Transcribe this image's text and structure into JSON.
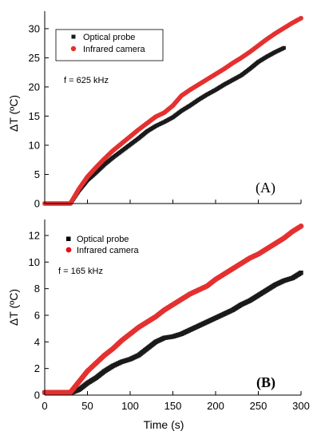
{
  "colors": {
    "optical": "#1a1a1a",
    "infrared": "#e53030",
    "axis": "#000000"
  },
  "xlabel": "Time (s)",
  "chart_data": [
    {
      "type": "scatter",
      "panel": "A",
      "panel_label": "(A)",
      "frequency_note": "f = 625 kHz",
      "ylabel": "ΔT (ºC)",
      "xlim": [
        0,
        300
      ],
      "ylim": [
        0,
        33
      ],
      "xticks": [
        0,
        50,
        100,
        150,
        200,
        250,
        300
      ],
      "yticks": [
        0,
        5,
        10,
        15,
        20,
        25,
        30
      ],
      "legend_position": "top-left",
      "series": [
        {
          "name": "Optical probe",
          "marker": "square",
          "points": [
            [
              0,
              0
            ],
            [
              20,
              0
            ],
            [
              30,
              0
            ],
            [
              40,
              2.2
            ],
            [
              50,
              4.0
            ],
            [
              60,
              5.3
            ],
            [
              70,
              6.7
            ],
            [
              80,
              7.9
            ],
            [
              90,
              9.0
            ],
            [
              100,
              10.1
            ],
            [
              110,
              11.2
            ],
            [
              120,
              12.4
            ],
            [
              130,
              13.3
            ],
            [
              140,
              14.0
            ],
            [
              150,
              14.8
            ],
            [
              160,
              15.9
            ],
            [
              170,
              16.8
            ],
            [
              180,
              17.8
            ],
            [
              190,
              18.7
            ],
            [
              200,
              19.5
            ],
            [
              210,
              20.4
            ],
            [
              220,
              21.2
            ],
            [
              230,
              22.0
            ],
            [
              240,
              23.1
            ],
            [
              250,
              24.3
            ],
            [
              260,
              25.2
            ],
            [
              270,
              26.0
            ],
            [
              280,
              26.7
            ]
          ]
        },
        {
          "name": "Infrared camera",
          "marker": "circle",
          "points": [
            [
              0,
              0
            ],
            [
              20,
              0
            ],
            [
              30,
              0
            ],
            [
              40,
              2.5
            ],
            [
              50,
              4.6
            ],
            [
              60,
              6.2
            ],
            [
              70,
              7.7
            ],
            [
              80,
              9.1
            ],
            [
              90,
              10.3
            ],
            [
              100,
              11.5
            ],
            [
              110,
              12.7
            ],
            [
              120,
              13.8
            ],
            [
              130,
              14.9
            ],
            [
              140,
              15.6
            ],
            [
              150,
              16.8
            ],
            [
              160,
              18.5
            ],
            [
              170,
              19.5
            ],
            [
              180,
              20.4
            ],
            [
              190,
              21.3
            ],
            [
              200,
              22.2
            ],
            [
              210,
              23.1
            ],
            [
              220,
              24.1
            ],
            [
              230,
              25.0
            ],
            [
              240,
              26.0
            ],
            [
              250,
              27.1
            ],
            [
              260,
              28.2
            ],
            [
              270,
              29.2
            ],
            [
              280,
              30.1
            ],
            [
              290,
              31.0
            ],
            [
              300,
              31.8
            ]
          ]
        }
      ]
    },
    {
      "type": "scatter",
      "panel": "B",
      "panel_label": "(B)",
      "frequency_note": "f = 165 kHz",
      "ylabel": "ΔT (ºC)",
      "xlim": [
        0,
        300
      ],
      "ylim": [
        0,
        13.2
      ],
      "xticks": [
        0,
        50,
        100,
        150,
        200,
        250,
        300
      ],
      "yticks": [
        0,
        2,
        4,
        6,
        8,
        10,
        12
      ],
      "legend_position": "top-left",
      "series": [
        {
          "name": "Optical probe",
          "marker": "square",
          "points": [
            [
              0,
              0.2
            ],
            [
              20,
              0.2
            ],
            [
              30,
              0.15
            ],
            [
              40,
              0.4
            ],
            [
              50,
              0.9
            ],
            [
              60,
              1.3
            ],
            [
              70,
              1.8
            ],
            [
              80,
              2.2
            ],
            [
              90,
              2.5
            ],
            [
              100,
              2.7
            ],
            [
              110,
              3.0
            ],
            [
              120,
              3.5
            ],
            [
              130,
              4.0
            ],
            [
              140,
              4.3
            ],
            [
              150,
              4.4
            ],
            [
              160,
              4.6
            ],
            [
              170,
              4.9
            ],
            [
              180,
              5.2
            ],
            [
              190,
              5.5
            ],
            [
              200,
              5.8
            ],
            [
              210,
              6.1
            ],
            [
              220,
              6.4
            ],
            [
              230,
              6.8
            ],
            [
              240,
              7.1
            ],
            [
              250,
              7.5
            ],
            [
              260,
              7.9
            ],
            [
              270,
              8.3
            ],
            [
              280,
              8.6
            ],
            [
              290,
              8.8
            ],
            [
              300,
              9.2
            ]
          ]
        },
        {
          "name": "Infrared camera",
          "marker": "circle",
          "points": [
            [
              0,
              0.2
            ],
            [
              20,
              0.2
            ],
            [
              30,
              0.2
            ],
            [
              40,
              1.0
            ],
            [
              50,
              1.8
            ],
            [
              60,
              2.4
            ],
            [
              70,
              3.0
            ],
            [
              80,
              3.5
            ],
            [
              90,
              4.1
            ],
            [
              100,
              4.6
            ],
            [
              110,
              5.1
            ],
            [
              120,
              5.5
            ],
            [
              130,
              5.9
            ],
            [
              140,
              6.4
            ],
            [
              150,
              6.8
            ],
            [
              160,
              7.2
            ],
            [
              170,
              7.6
            ],
            [
              180,
              7.9
            ],
            [
              190,
              8.2
            ],
            [
              200,
              8.7
            ],
            [
              210,
              9.1
            ],
            [
              220,
              9.5
            ],
            [
              230,
              9.9
            ],
            [
              240,
              10.3
            ],
            [
              250,
              10.6
            ],
            [
              260,
              11.0
            ],
            [
              270,
              11.4
            ],
            [
              280,
              11.8
            ],
            [
              290,
              12.3
            ],
            [
              300,
              12.7
            ]
          ]
        }
      ]
    }
  ]
}
